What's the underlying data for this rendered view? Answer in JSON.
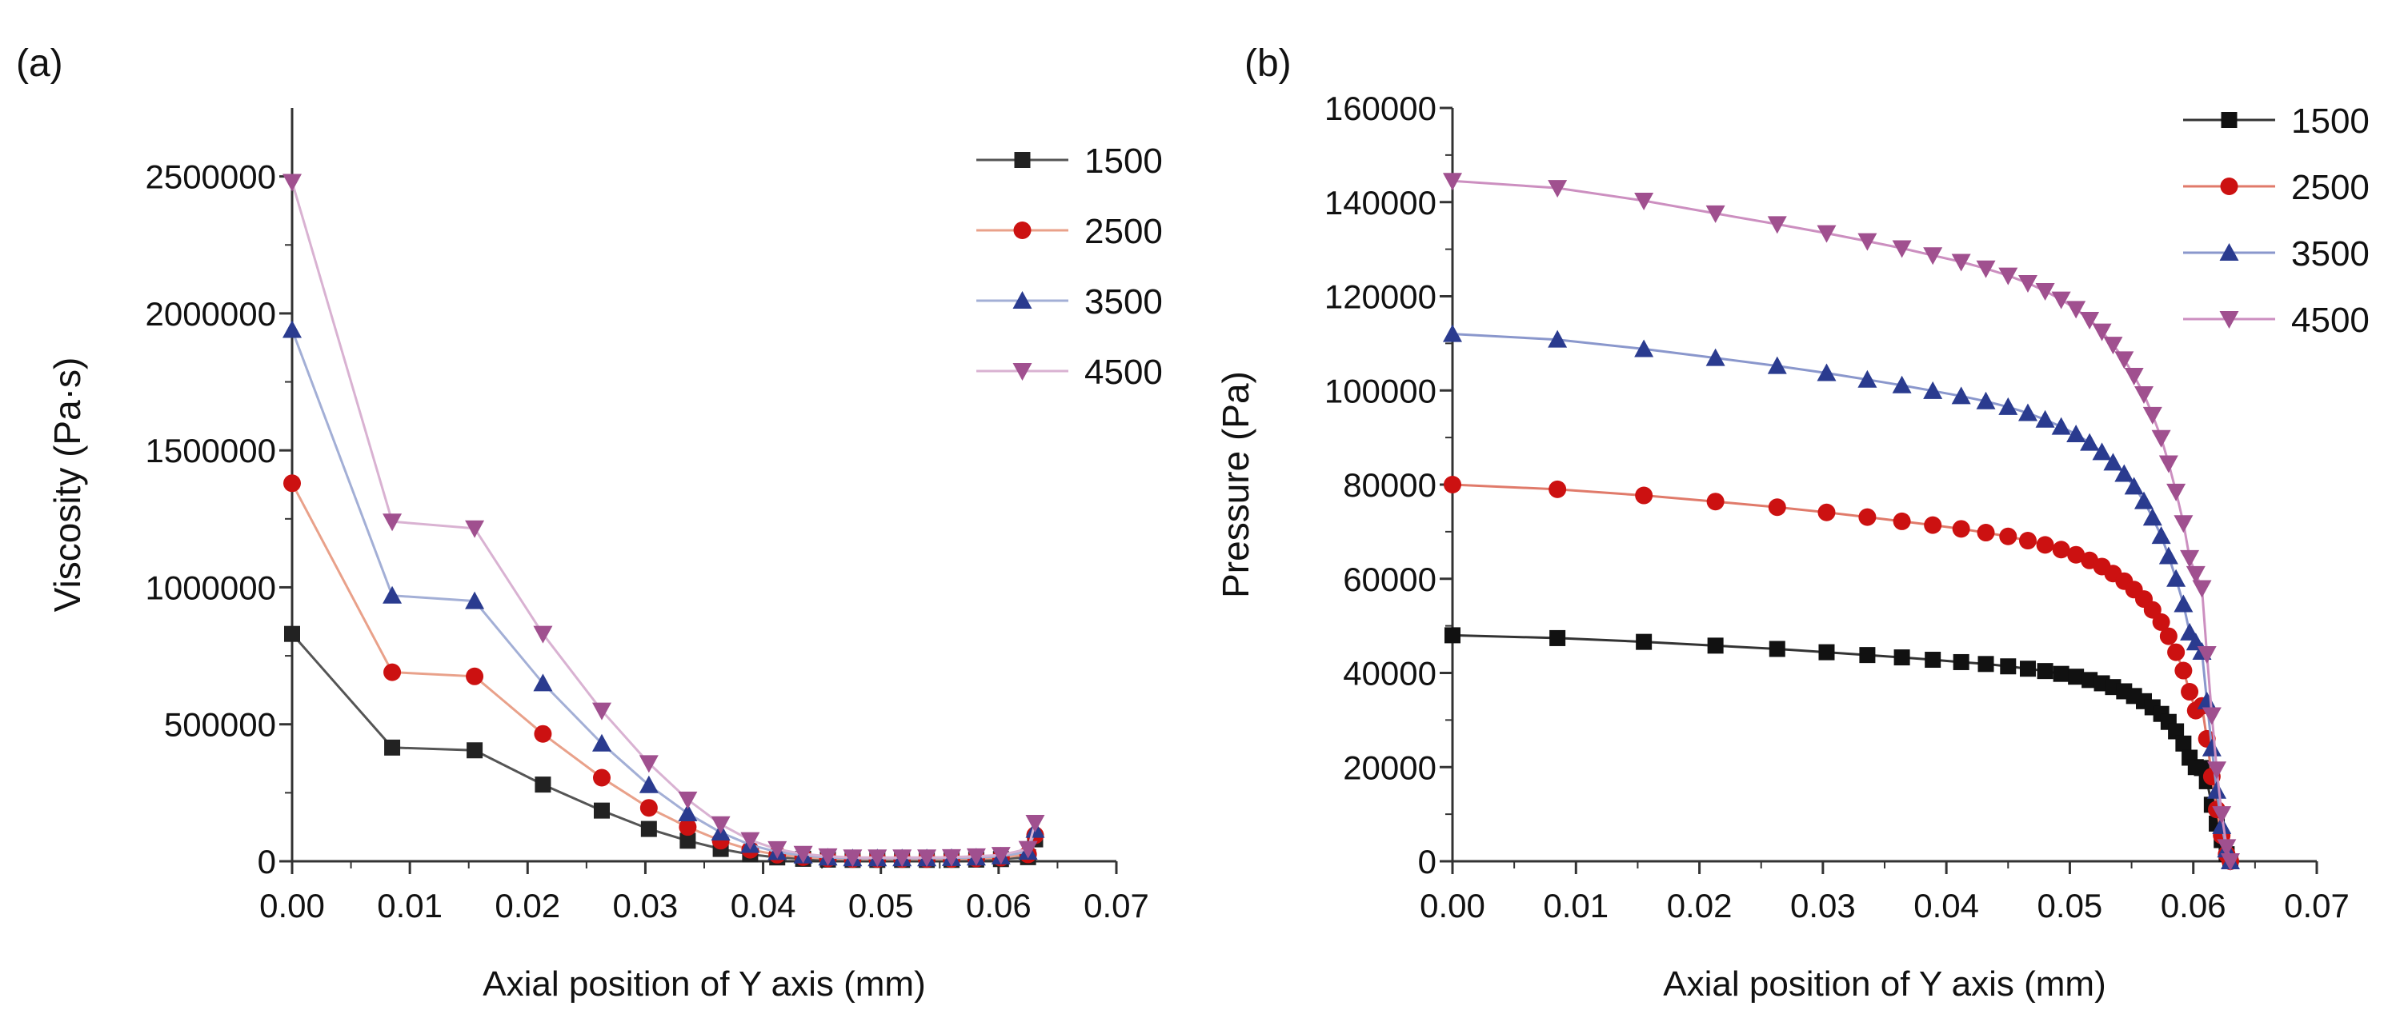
{
  "chart_data": [
    {
      "panel_label": "(a)",
      "type": "line",
      "title": "",
      "xlabel": "Axial position of Y axis (mm)",
      "ylabel": "Viscosity (Pa·s)",
      "xlim": [
        0,
        0.07
      ],
      "ylim": [
        0,
        2750000
      ],
      "x_ticks": [
        0,
        0.01,
        0.02,
        0.03,
        0.04,
        0.05,
        0.06,
        0.07
      ],
      "x_tick_labels": [
        "0.00",
        "0.01",
        "0.02",
        "0.03",
        "0.04",
        "0.05",
        "0.06",
        "0.07"
      ],
      "y_ticks": [
        0,
        500000,
        1000000,
        1500000,
        2000000,
        2500000
      ],
      "y_tick_labels": [
        "0",
        "500000",
        "1000000",
        "1500000",
        "2000000",
        "2500000"
      ],
      "legend_position": "top-right",
      "x": [
        0,
        0.0085,
        0.0155,
        0.0213,
        0.0263,
        0.0303,
        0.0336,
        0.0364,
        0.0389,
        0.0412,
        0.0434,
        0.0455,
        0.0476,
        0.0497,
        0.0518,
        0.0539,
        0.056,
        0.0581,
        0.0602,
        0.0625,
        0.0631
      ],
      "series": [
        {
          "name": "1500",
          "color": "#222222",
          "line_color": "#555555",
          "marker": "square",
          "values": [
            830000,
            415000,
            405000,
            280000,
            185000,
            118000,
            75000,
            45000,
            25000,
            14000,
            9000,
            6000,
            5000,
            5000,
            5000,
            5000,
            5000,
            6000,
            8000,
            15000,
            80000
          ]
        },
        {
          "name": "2500",
          "color": "#cc1111",
          "line_color": "#e9a18a",
          "marker": "circle",
          "values": [
            1380000,
            690000,
            675000,
            465000,
            305000,
            195000,
            125000,
            75000,
            42000,
            24000,
            15000,
            10000,
            8000,
            8000,
            8000,
            8000,
            8000,
            10000,
            13000,
            25000,
            95000
          ]
        },
        {
          "name": "3500",
          "color": "#2a3b8f",
          "line_color": "#a3afd6",
          "marker": "triangle-up",
          "values": [
            1940000,
            970000,
            950000,
            650000,
            430000,
            278000,
            175000,
            105000,
            60000,
            34000,
            21000,
            14000,
            11000,
            11000,
            11000,
            11000,
            12000,
            14000,
            18000,
            35000,
            115000
          ]
        },
        {
          "name": "4500",
          "color": "#a0508f",
          "line_color": "#d9b2d2",
          "marker": "triangle-down",
          "values": [
            2480000,
            1240000,
            1215000,
            830000,
            550000,
            358000,
            225000,
            135000,
            77000,
            44000,
            27000,
            18000,
            14000,
            14000,
            14000,
            14000,
            15000,
            18000,
            23000,
            45000,
            140000
          ]
        }
      ]
    },
    {
      "panel_label": "(b)",
      "type": "line",
      "title": "",
      "xlabel": "Axial position of Y axis (mm)",
      "ylabel": "Pressure (Pa)",
      "xlim": [
        0,
        0.07
      ],
      "ylim": [
        0,
        160000
      ],
      "x_ticks": [
        0,
        0.01,
        0.02,
        0.03,
        0.04,
        0.05,
        0.06,
        0.07
      ],
      "x_tick_labels": [
        "0.00",
        "0.01",
        "0.02",
        "0.03",
        "0.04",
        "0.05",
        "0.06",
        "0.07"
      ],
      "y_ticks": [
        0,
        20000,
        40000,
        60000,
        80000,
        100000,
        120000,
        140000,
        160000
      ],
      "y_tick_labels": [
        "0",
        "20000",
        "40000",
        "60000",
        "80000",
        "100000",
        "120000",
        "140000",
        "160000"
      ],
      "legend_position": "top-right",
      "x": [
        0,
        0.0085,
        0.0155,
        0.0213,
        0.0263,
        0.0303,
        0.0336,
        0.0364,
        0.0389,
        0.0412,
        0.0432,
        0.045,
        0.0466,
        0.048,
        0.0493,
        0.0505,
        0.0516,
        0.0526,
        0.0535,
        0.0544,
        0.0552,
        0.056,
        0.0567,
        0.0574,
        0.058,
        0.0586,
        0.0592,
        0.0597,
        0.0602,
        0.0607,
        0.0611,
        0.0615,
        0.0619,
        0.0623,
        0.0627,
        0.063
      ],
      "series": [
        {
          "name": "1500",
          "color": "#111111",
          "line_color": "#333333",
          "marker": "square",
          "values": [
            48000,
            47400,
            46600,
            45800,
            45100,
            44400,
            43800,
            43300,
            42800,
            42300,
            41900,
            41400,
            40900,
            40400,
            39800,
            39200,
            38500,
            37800,
            37000,
            36100,
            35100,
            34000,
            32700,
            31300,
            29600,
            27600,
            25000,
            22000,
            20000,
            19800,
            17000,
            12000,
            8000,
            4500,
            1500,
            0
          ]
        },
        {
          "name": "2500",
          "color": "#cc1111",
          "line_color": "#e07a6a",
          "marker": "circle",
          "values": [
            80000,
            79000,
            77700,
            76400,
            75200,
            74100,
            73100,
            72200,
            71400,
            70600,
            69800,
            69000,
            68100,
            67200,
            66200,
            65100,
            63900,
            62600,
            61100,
            59500,
            57700,
            55700,
            53400,
            50800,
            47800,
            44400,
            40500,
            36000,
            32000,
            33000,
            26000,
            18000,
            11000,
            5500,
            1500,
            0
          ]
        },
        {
          "name": "3500",
          "color": "#2a3b8f",
          "line_color": "#8a97cc",
          "marker": "triangle-up",
          "values": [
            112000,
            110800,
            108800,
            106900,
            105200,
            103700,
            102300,
            101100,
            99900,
            98800,
            97700,
            96500,
            95200,
            93800,
            92300,
            90700,
            88900,
            86900,
            84700,
            82300,
            79600,
            76500,
            73000,
            69100,
            64800,
            60000,
            54600,
            48600,
            46500,
            44500,
            34000,
            24000,
            15000,
            7500,
            2500,
            0
          ]
        },
        {
          "name": "4500",
          "color": "#a0508f",
          "line_color": "#cc8fc0",
          "marker": "triangle-down",
          "values": [
            144500,
            143000,
            140300,
            137600,
            135300,
            133400,
            131700,
            130200,
            128700,
            127300,
            125900,
            124400,
            122800,
            121100,
            119300,
            117300,
            115000,
            112500,
            109700,
            106600,
            103100,
            99200,
            94800,
            89900,
            84500,
            78500,
            71800,
            64400,
            61000,
            58000,
            44000,
            31000,
            19500,
            10000,
            3000,
            0
          ]
        }
      ]
    }
  ]
}
